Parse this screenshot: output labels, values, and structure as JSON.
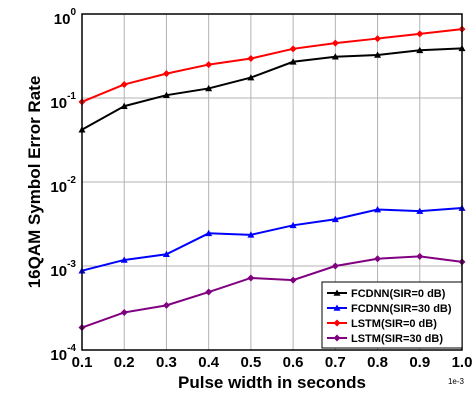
{
  "chart_data": {
    "type": "line",
    "xlabel": "Pulse width in seconds",
    "ylabel": "16QAM Symbol Error Rate",
    "x_multiplier": "1e-3",
    "x": [
      0.1,
      0.2,
      0.3,
      0.4,
      0.5,
      0.6,
      0.7,
      0.8,
      0.9,
      1.0
    ],
    "x_tick_labels": [
      "0.1",
      "0.2",
      "0.3",
      "0.4",
      "0.5",
      "0.6",
      "0.7",
      "0.8",
      "0.9",
      "1.0"
    ],
    "xlim": [
      0.1,
      1.0
    ],
    "yscale": "log",
    "ylim": [
      0.0001,
      1
    ],
    "y_tick_bases": [
      "10",
      "10",
      "10",
      "10",
      "10"
    ],
    "y_tick_exponents": [
      "0",
      "-1",
      "-2",
      "-3",
      "-4"
    ],
    "grid": true,
    "legend_position": "bottom-right",
    "series": [
      {
        "name": "FCDNN(SIR=0 dB)",
        "color": "#000000",
        "marker": "triangle",
        "values": [
          0.042,
          0.08,
          0.108,
          0.13,
          0.175,
          0.27,
          0.31,
          0.325,
          0.37,
          0.39
        ]
      },
      {
        "name": "FCDNN(SIR=30 dB)",
        "color": "#0000ff",
        "marker": "triangle",
        "values": [
          0.00088,
          0.00118,
          0.00138,
          0.00245,
          0.00235,
          0.00305,
          0.0036,
          0.0047,
          0.0045,
          0.0049
        ]
      },
      {
        "name": "LSTM(SIR=0 dB)",
        "color": "#ff0000",
        "marker": "diamond",
        "values": [
          0.09,
          0.145,
          0.195,
          0.25,
          0.295,
          0.385,
          0.45,
          0.51,
          0.58,
          0.66
        ]
      },
      {
        "name": "LSTM(SIR=30 dB)",
        "color": "#800080",
        "marker": "diamond",
        "values": [
          0.000185,
          0.00028,
          0.00034,
          0.00049,
          0.00072,
          0.00068,
          0.001,
          0.00122,
          0.0013,
          0.00112
        ]
      }
    ]
  }
}
